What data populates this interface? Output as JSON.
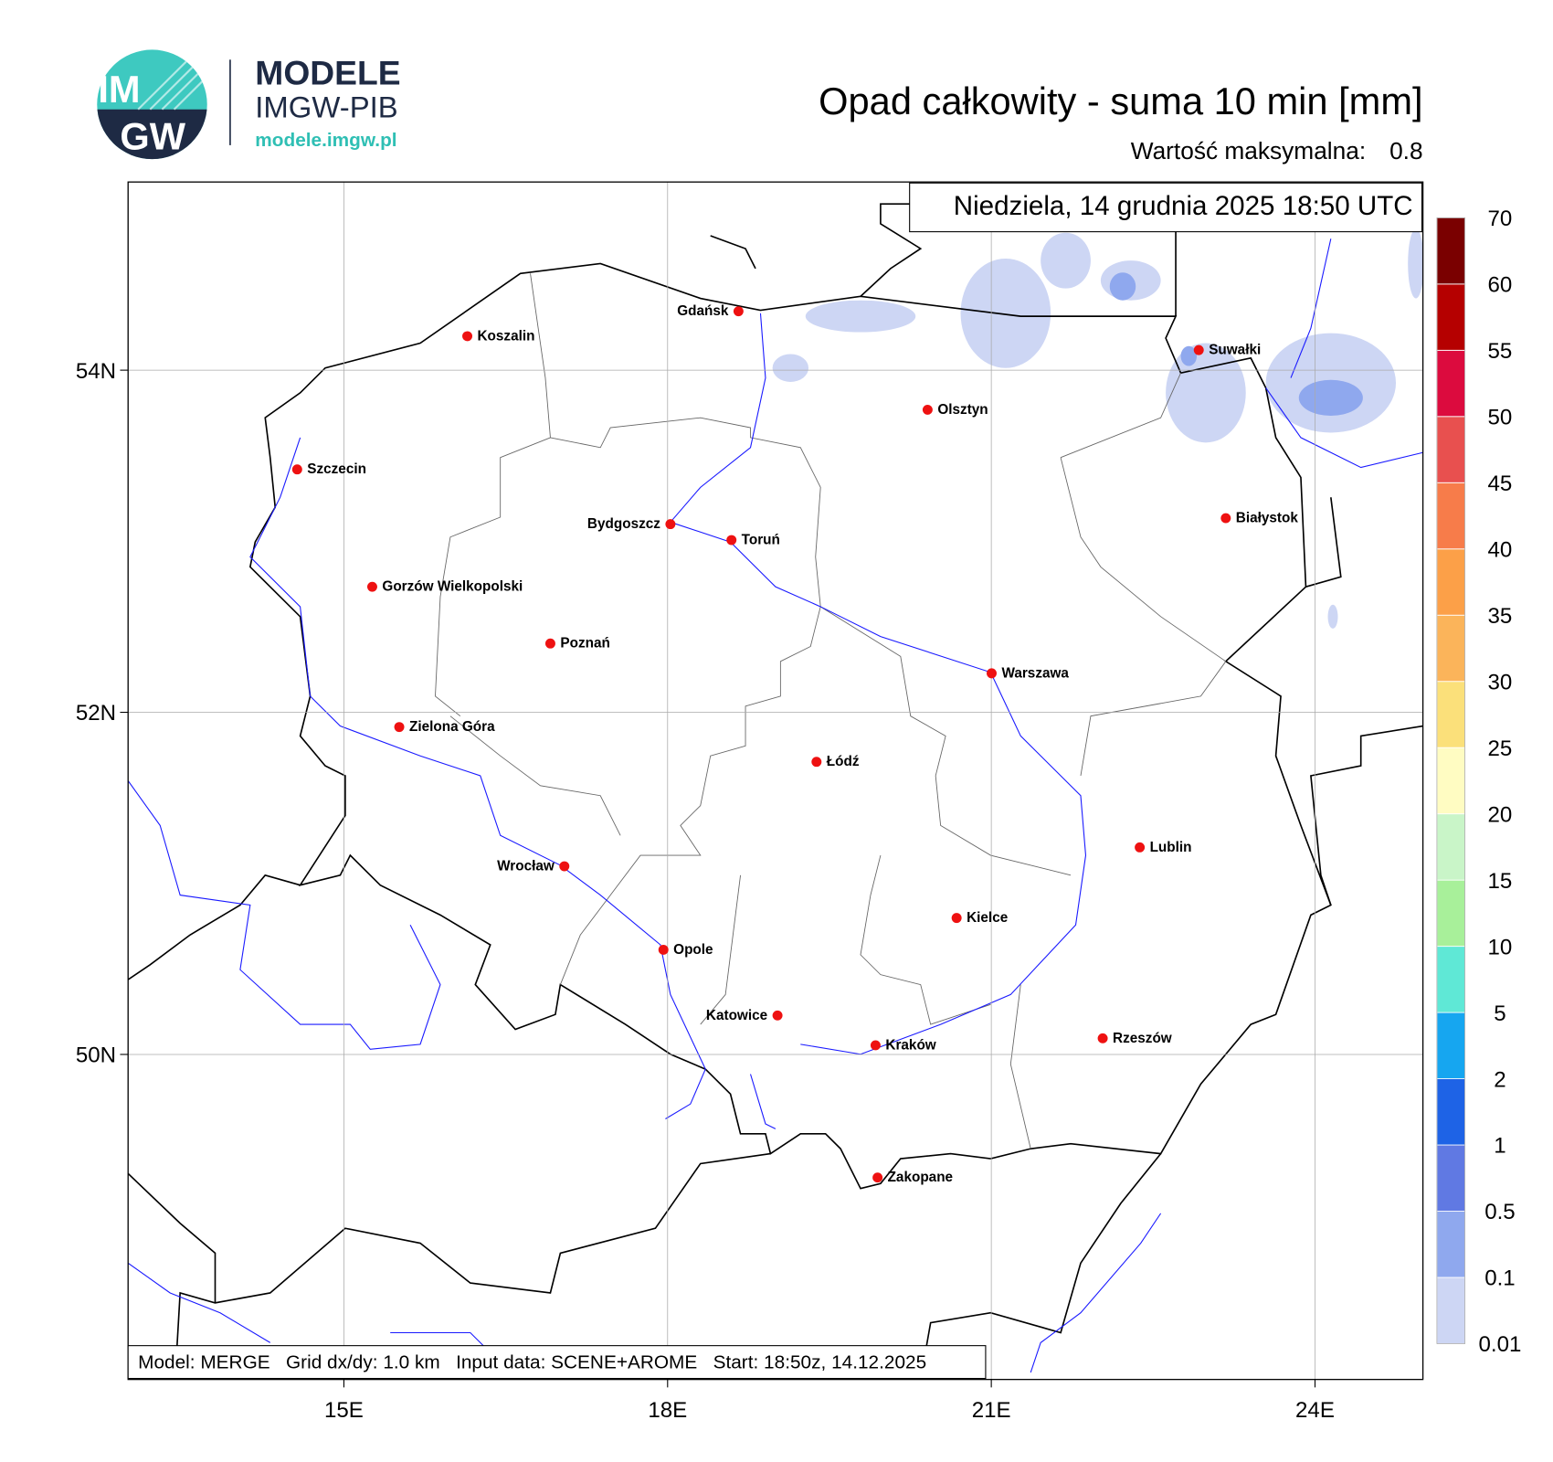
{
  "header": {
    "logo_top": "IM",
    "logo_bottom": "GW",
    "brand": "MODELE",
    "org": "IMGW-PIB",
    "url": "modele.imgw.pl"
  },
  "map": {
    "type": "map",
    "title": "Opad całkowity - suma 10 min [mm]",
    "max_label": "Wartość maksymalna:",
    "max_value": 0.8,
    "date": "Niedziela, 14 grudnia 2025 18:50 UTC",
    "footer": "Model: MERGE   Grid dx/dy: 1.0 km   Input data: SCENE+AROME   Start: 18:50z, 14.12.2025",
    "xlim": [
      13,
      25
    ],
    "ylim": [
      48.1,
      55.1
    ],
    "xticks": [
      {
        "value": 15,
        "label": "15E"
      },
      {
        "value": 18,
        "label": "18E"
      },
      {
        "value": 21,
        "label": "21E"
      },
      {
        "value": 24,
        "label": "24E"
      }
    ],
    "yticks": [
      {
        "value": 50,
        "label": "50N"
      },
      {
        "value": 52,
        "label": "52N"
      },
      {
        "value": 54,
        "label": "54N"
      }
    ],
    "grid": true,
    "cities": [
      "Koszalin",
      "Gdańsk",
      "Szczecin",
      "Suwałki",
      "Olsztyn",
      "Białystok",
      "Bydgoszcz",
      "Toruń",
      "Gorzów Wielkopolski",
      "Poznań",
      "Warszawa",
      "Zielona Góra",
      "Łódź",
      "Lublin",
      "Wrocław",
      "Kielce",
      "Opole",
      "Katowice",
      "Rzeszów",
      "Kraków",
      "Zakopane"
    ],
    "colorbar": {
      "levels": [
        0.01,
        0.1,
        0.5,
        1,
        2,
        5,
        10,
        15,
        20,
        25,
        30,
        35,
        40,
        45,
        50,
        55,
        60,
        70
      ],
      "colors": [
        "#cdd6f4",
        "#8fa8ee",
        "#6079e3",
        "#1e63e6",
        "#16a6f0",
        "#5fe8d6",
        "#a8f09a",
        "#c9f5c8",
        "#fffcc2",
        "#fbe07a",
        "#fbb45a",
        "#fca048",
        "#f77c4a",
        "#e8504f",
        "#dc0b3e",
        "#b50000",
        "#7a0000"
      ]
    }
  }
}
